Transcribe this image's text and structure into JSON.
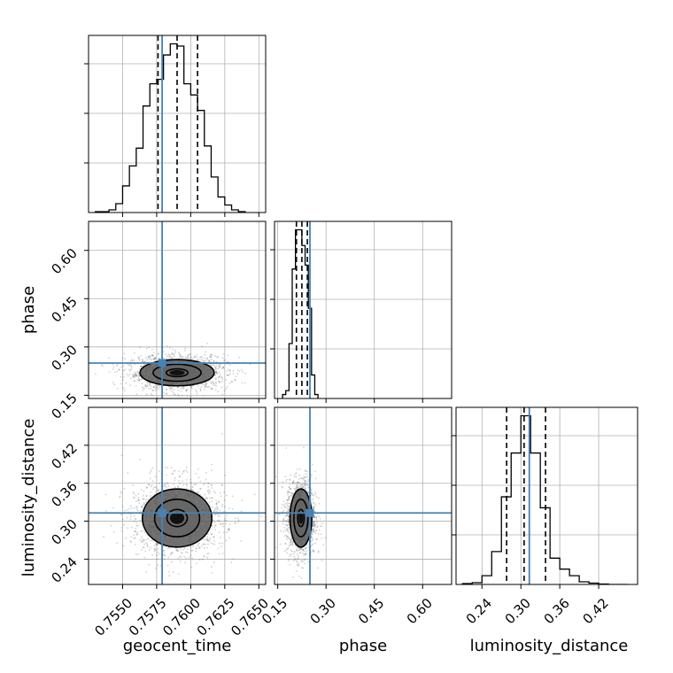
{
  "chart_data": {
    "type": "corner",
    "parameters": [
      "geocent_time",
      "phase",
      "luminosity_distance"
    ],
    "axis_labels": {
      "geocent_time": "geocent_time",
      "phase": "phase",
      "luminosity_distance": "luminosity_distance"
    },
    "colors": {
      "truth": "#4682b4",
      "hist": "#000000",
      "grid": "#b0b0b0"
    },
    "grid": true,
    "ranges": {
      "geocent_time": [
        0.7525,
        0.7655
      ],
      "phase": [
        0.14,
        0.69
      ],
      "luminosity_distance": [
        0.2,
        0.48
      ]
    },
    "truths": {
      "geocent_time": 0.7579,
      "phase": 0.25,
      "luminosity_distance": 0.313
    },
    "ticks": {
      "geocent_time": [
        {
          "v": 0.755,
          "label": "0.7550"
        },
        {
          "v": 0.7575,
          "label": "0.7575"
        },
        {
          "v": 0.76,
          "label": "0.7600"
        },
        {
          "v": 0.7625,
          "label": "0.7625"
        },
        {
          "v": 0.765,
          "label": "0.7650"
        }
      ],
      "phase": [
        {
          "v": 0.15,
          "label": "0.15"
        },
        {
          "v": 0.3,
          "label": "0.30"
        },
        {
          "v": 0.45,
          "label": "0.45"
        },
        {
          "v": 0.6,
          "label": "0.60"
        }
      ],
      "luminosity_distance": [
        {
          "v": 0.24,
          "label": "0.24"
        },
        {
          "v": 0.3,
          "label": "0.30"
        },
        {
          "v": 0.36,
          "label": "0.36"
        },
        {
          "v": 0.42,
          "label": "0.42"
        }
      ]
    },
    "histograms": {
      "geocent_time": {
        "edges": [
          0.753,
          0.7535,
          0.754,
          0.7545,
          0.755,
          0.7555,
          0.756,
          0.7565,
          0.757,
          0.7575,
          0.758,
          0.7585,
          0.759,
          0.7595,
          0.76,
          0.7605,
          0.761,
          0.7615,
          0.762,
          0.7625,
          0.763,
          0.7635,
          0.764
        ],
        "counts": [
          2,
          2,
          6,
          20,
          60,
          105,
          145,
          240,
          290,
          300,
          355,
          380,
          375,
          290,
          265,
          230,
          150,
          80,
          35,
          17,
          6,
          2
        ],
        "quantiles": [
          0.7576,
          0.759,
          0.7605
        ]
      },
      "phase": {
        "edges": [
          0.165,
          0.175,
          0.185,
          0.195,
          0.205,
          0.215,
          0.225,
          0.235,
          0.245,
          0.255,
          0.265,
          0.275
        ],
        "counts": [
          5,
          10,
          70,
          165,
          215,
          215,
          195,
          170,
          115,
          30,
          5
        ],
        "quantiles": [
          0.208,
          0.225,
          0.242
        ]
      },
      "luminosity_distance": {
        "edges": [
          0.21,
          0.225,
          0.24,
          0.255,
          0.27,
          0.285,
          0.3,
          0.315,
          0.33,
          0.345,
          0.36,
          0.375,
          0.39,
          0.405,
          0.42,
          0.435,
          0.45,
          0.465
        ],
        "counts": [
          2,
          4,
          20,
          75,
          200,
          300,
          385,
          300,
          175,
          60,
          35,
          20,
          6,
          3,
          1,
          0,
          0
        ],
        "quantiles": [
          0.278,
          0.305,
          0.338
        ]
      }
    },
    "contours": {
      "phase_vs_geocent_time": {
        "center": [
          0.759,
          0.22
        ],
        "sigma": [
          0.0016,
          0.024
        ],
        "levels": [
          0.5,
          1.1,
          1.7
        ]
      },
      "luminosity_distance_vs_geocent_time": {
        "center": [
          0.759,
          0.305
        ],
        "sigma": [
          0.0015,
          0.027
        ],
        "levels": [
          0.5,
          1.1,
          1.7
        ]
      },
      "luminosity_distance_vs_phase": {
        "center": [
          0.222,
          0.305
        ],
        "sigma": [
          0.02,
          0.027
        ],
        "levels": [
          0.5,
          1.1,
          1.7
        ]
      }
    }
  }
}
